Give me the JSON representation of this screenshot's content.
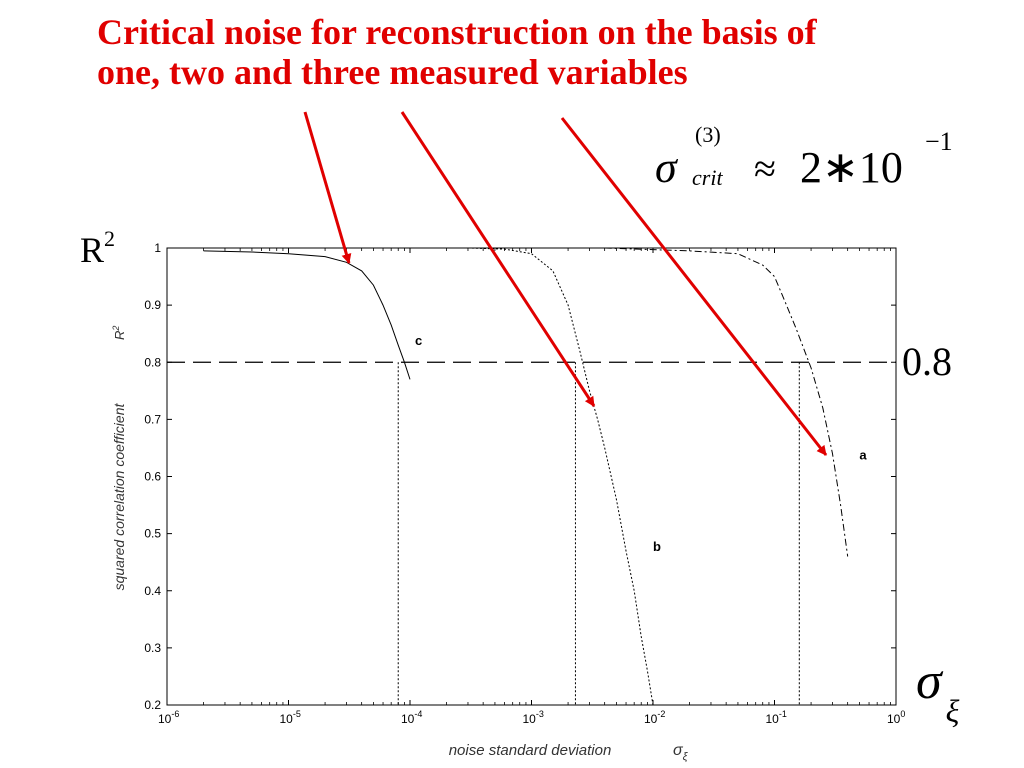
{
  "slide": {
    "title": "Critical noise for reconstruction on the basis of one, two and three measured variables",
    "formula": {
      "symbol": "σ",
      "superscript": "(3)",
      "subscript": "crit",
      "relation": "≈",
      "value": "2∗10",
      "exponent": "−1"
    },
    "r2_label": {
      "base": "R",
      "sup": "2"
    },
    "threshold_label": "0.8",
    "sigma_xi_label": {
      "symbol": "σ",
      "sub": "ξ"
    },
    "colors": {
      "title": "#e00000",
      "arrows": "#e00000"
    }
  },
  "chart_data": {
    "type": "line",
    "x_scale": "log",
    "xlabel": "noise standard deviation",
    "xlabel_symbol": {
      "symbol": "σ",
      "sub": "ξ"
    },
    "ylabel": "squared correlation coefficient",
    "ylabel_symbol": {
      "base": "R",
      "sup": "2"
    },
    "xlim": [
      1e-06,
      1
    ],
    "ylim": [
      0.2,
      1
    ],
    "x_ticks": [
      {
        "value": 1e-06,
        "mantissa": "10",
        "exp": "-6"
      },
      {
        "value": 1e-05,
        "mantissa": "10",
        "exp": "-5"
      },
      {
        "value": 0.0001,
        "mantissa": "10",
        "exp": "-4"
      },
      {
        "value": 0.001,
        "mantissa": "10",
        "exp": "-3"
      },
      {
        "value": 0.01,
        "mantissa": "10",
        "exp": "-2"
      },
      {
        "value": 0.1,
        "mantissa": "10",
        "exp": "-1"
      },
      {
        "value": 1,
        "mantissa": "10",
        "exp": "0"
      }
    ],
    "y_ticks": [
      0.2,
      0.3,
      0.4,
      0.5,
      0.6,
      0.7,
      0.8,
      0.9,
      1
    ],
    "y_tick_labels": [
      "0.2",
      "0.3",
      "0.4",
      "0.5",
      "0.6",
      "0.7",
      "0.8",
      "0.9",
      "1"
    ],
    "grid": false,
    "threshold": 0.8,
    "critical_x": [
      8e-05,
      0.0023,
      0.16
    ],
    "series": [
      {
        "name": "c",
        "style": "solid",
        "x": [
          2e-06,
          5e-06,
          1e-05,
          2e-05,
          3e-05,
          4e-05,
          5e-05,
          6e-05,
          7e-05,
          8e-05,
          9e-05,
          0.0001
        ],
        "y": [
          0.995,
          0.993,
          0.99,
          0.985,
          0.975,
          0.96,
          0.935,
          0.9,
          0.865,
          0.83,
          0.8,
          0.77
        ]
      },
      {
        "name": "b",
        "style": "dotted",
        "x": [
          0.0003,
          0.0006,
          0.001,
          0.0015,
          0.002,
          0.0025,
          0.003,
          0.0035,
          0.004,
          0.005,
          0.006,
          0.007,
          0.008,
          0.009,
          0.01
        ],
        "y": [
          1,
          0.998,
          0.99,
          0.96,
          0.9,
          0.82,
          0.75,
          0.7,
          0.65,
          0.56,
          0.47,
          0.4,
          0.32,
          0.26,
          0.2
        ]
      },
      {
        "name": "a",
        "style": "dashdot",
        "x": [
          0.004,
          0.02,
          0.05,
          0.08,
          0.1,
          0.12,
          0.15,
          0.2,
          0.25,
          0.3,
          0.35,
          0.4
        ],
        "y": [
          1,
          0.995,
          0.99,
          0.97,
          0.95,
          0.91,
          0.86,
          0.79,
          0.72,
          0.64,
          0.55,
          0.46
        ]
      }
    ],
    "series_labels": [
      {
        "name": "c",
        "x": 0.00011,
        "y": 0.83
      },
      {
        "name": "b",
        "x": 0.01,
        "y": 0.47
      },
      {
        "name": "a",
        "x": 0.5,
        "y": 0.63
      }
    ]
  }
}
